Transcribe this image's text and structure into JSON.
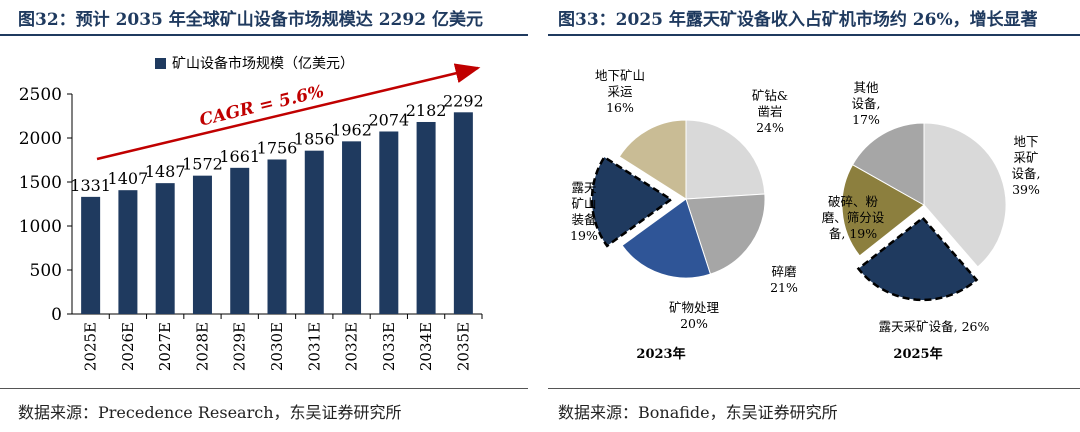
{
  "left": {
    "title": "图32：预计 2035 年全球矿山设备市场规模达 2292 亿美元",
    "source": "数据来源：Precedence Research，东吴证券研究所"
  },
  "right": {
    "title": "图33：2025 年露天矿设备收入占矿机市场约 26%，增长显著",
    "source": "数据来源：Bonafide，东吴证券研究所"
  },
  "chart_data": [
    {
      "type": "bar",
      "legend": "矿山设备市场规模（亿美元）",
      "legend_position": "top",
      "annotation": "CAGR = 5.6%",
      "categories": [
        "2025E",
        "2026E",
        "2027E",
        "2028E",
        "2029E",
        "2030E",
        "2031E",
        "2032E",
        "2033E",
        "2034E",
        "2035E"
      ],
      "values": [
        1331,
        1407,
        1487,
        1572,
        1661,
        1756,
        1856,
        1962,
        2074,
        2182,
        2292
      ],
      "ylim": [
        0,
        2500
      ],
      "yticks": [
        0,
        500,
        1000,
        1500,
        2000,
        2500
      ],
      "colors": {
        "bar": "#1f3a5f",
        "arrow": "#c00000"
      }
    },
    {
      "type": "pie",
      "label": "2023年",
      "slices": [
        {
          "label": "矿钻&凿岩",
          "lines": [
            "矿钻&",
            "凿岩"
          ],
          "pct_text": "24%",
          "value": 24,
          "color": "#d9d9d9",
          "exploded": false
        },
        {
          "label": "碎磨",
          "lines": [
            "碎磨"
          ],
          "pct_text": "21%",
          "value": 21,
          "color": "#a6a6a6",
          "exploded": false
        },
        {
          "label": "矿物处理",
          "lines": [
            "矿物处理"
          ],
          "pct_text": "20%",
          "value": 20,
          "color": "#2f5597",
          "exploded": false
        },
        {
          "label": "露天矿山装备",
          "lines": [
            "露天",
            "矿山",
            "装备"
          ],
          "pct_text": "19%",
          "value": 19,
          "color": "#1f3a5f",
          "exploded": true
        },
        {
          "label": "地下矿山采运",
          "lines": [
            "地下矿山",
            "采运"
          ],
          "pct_text": "16%",
          "value": 16,
          "color": "#c9bc95",
          "exploded": false
        }
      ]
    },
    {
      "type": "pie",
      "label": "2025年",
      "slices": [
        {
          "label": "地下采矿设备",
          "lines": [
            "地下",
            "采矿",
            "设备,"
          ],
          "pct_text": "39%",
          "value": 39,
          "color": "#d9d9d9",
          "exploded": false
        },
        {
          "label": "露天采矿设备",
          "lines": [
            "露天采矿设备, 26%"
          ],
          "pct_text": "",
          "value": 26,
          "color": "#1f3a5f",
          "exploded": true
        },
        {
          "label": "破碎、粉磨、筛分设备",
          "lines": [
            "破碎、粉",
            "磨、筛分设",
            "备, 19%"
          ],
          "pct_text": "",
          "value": 19,
          "color": "#8c7f3e",
          "exploded": false
        },
        {
          "label": "其他设备",
          "lines": [
            "其他",
            "设备,"
          ],
          "pct_text": "17%",
          "value": 17,
          "color": "#a6a6a6",
          "exploded": false
        }
      ]
    }
  ]
}
